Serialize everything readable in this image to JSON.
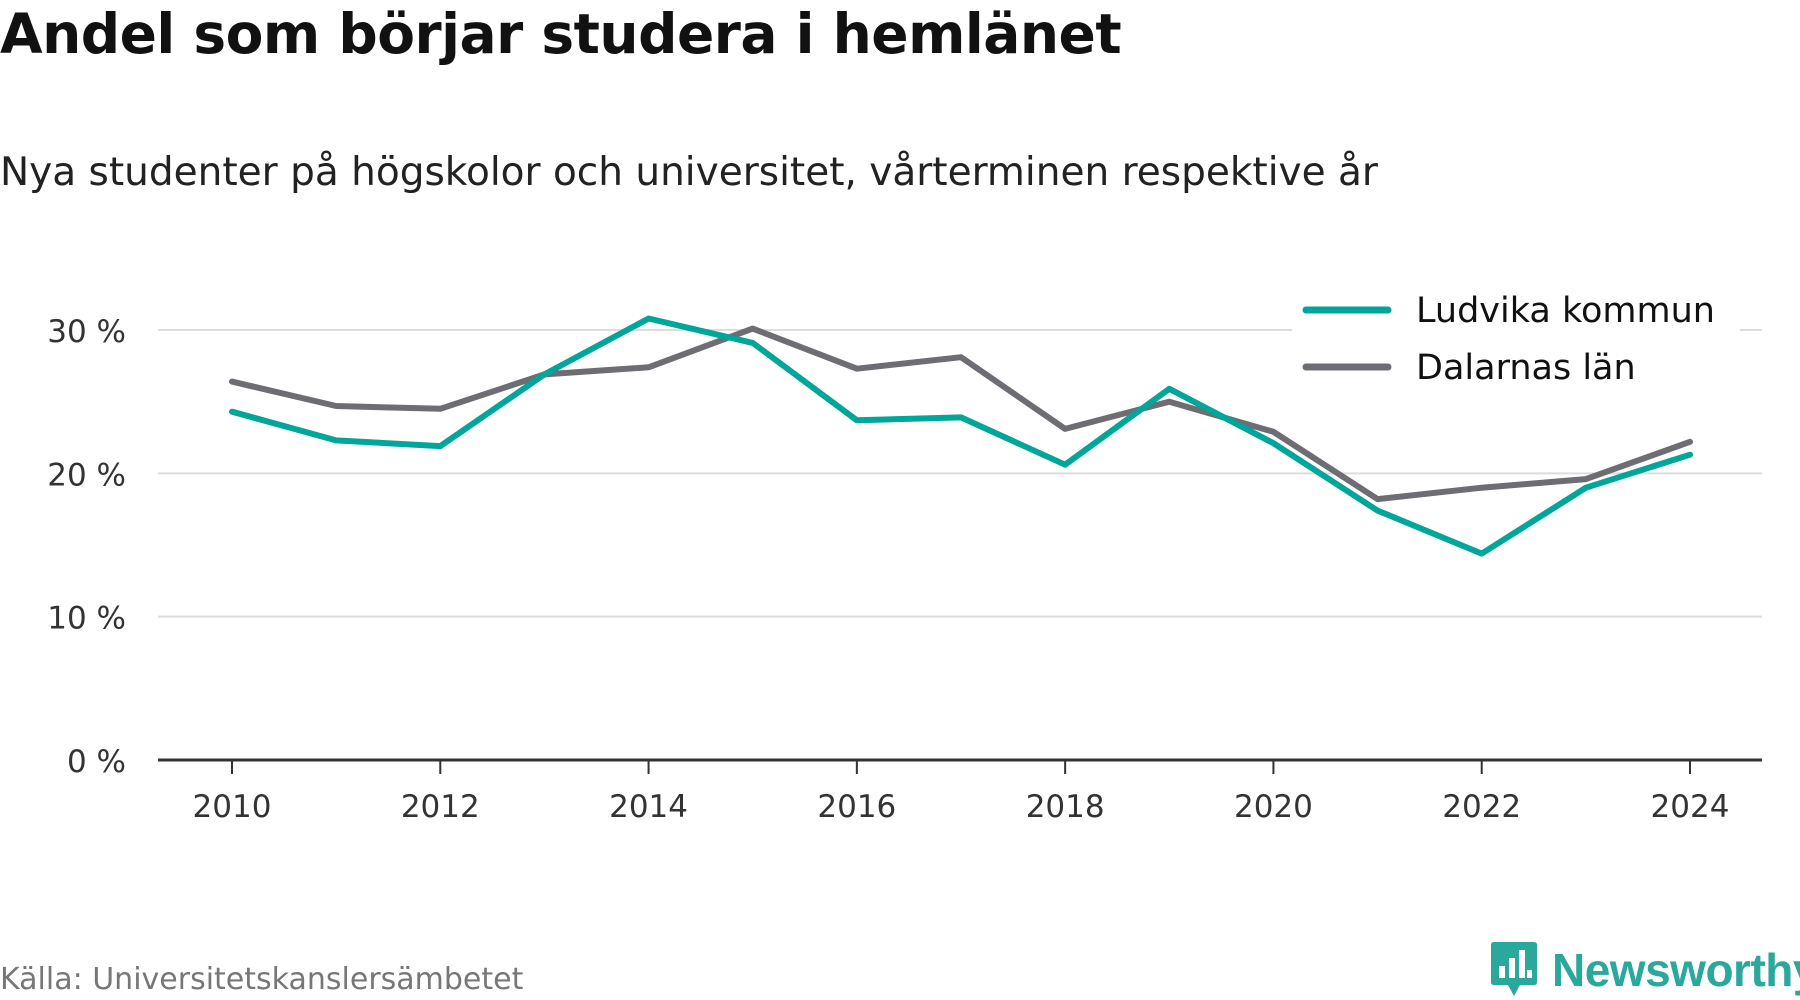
{
  "chart_data": {
    "type": "line",
    "title": "Andel som börjar studera i hemlänet",
    "subtitle": "Nya studenter på högskolor och universitet, vårterminen respektive år",
    "x": [
      2010,
      2011,
      2012,
      2013,
      2014,
      2015,
      2016,
      2017,
      2018,
      2019,
      2020,
      2021,
      2022,
      2023,
      2024
    ],
    "x_ticks": [
      "2010",
      "2012",
      "2014",
      "2016",
      "2018",
      "2020",
      "2022",
      "2024"
    ],
    "y_ticks": [
      "0 %",
      "10 %",
      "20 %",
      "30 %"
    ],
    "ylim": [
      0,
      30
    ],
    "grid": true,
    "legend_position": "top-right",
    "series": [
      {
        "name": "Ludvika kommun",
        "color": "#00a699",
        "values": [
          24.3,
          22.3,
          21.9,
          26.9,
          30.8,
          29.1,
          23.7,
          23.9,
          20.6,
          25.9,
          22.1,
          17.4,
          14.4,
          19.0,
          21.3
        ]
      },
      {
        "name": "Dalarnas län",
        "color": "#6e6d74",
        "values": [
          26.4,
          24.7,
          24.5,
          26.9,
          27.4,
          30.1,
          27.3,
          28.1,
          23.1,
          25.0,
          22.9,
          18.2,
          19.0,
          19.6,
          22.2
        ]
      }
    ]
  },
  "source": "Källa: Universitetskanslersämbetet",
  "logo_text": "Newsworthy",
  "colors": {
    "gridline": "#dddddd",
    "axis": "#333333",
    "logo": "#2aa89c"
  },
  "icons": {
    "logo": "bar-chart-speech-bubble-icon"
  }
}
